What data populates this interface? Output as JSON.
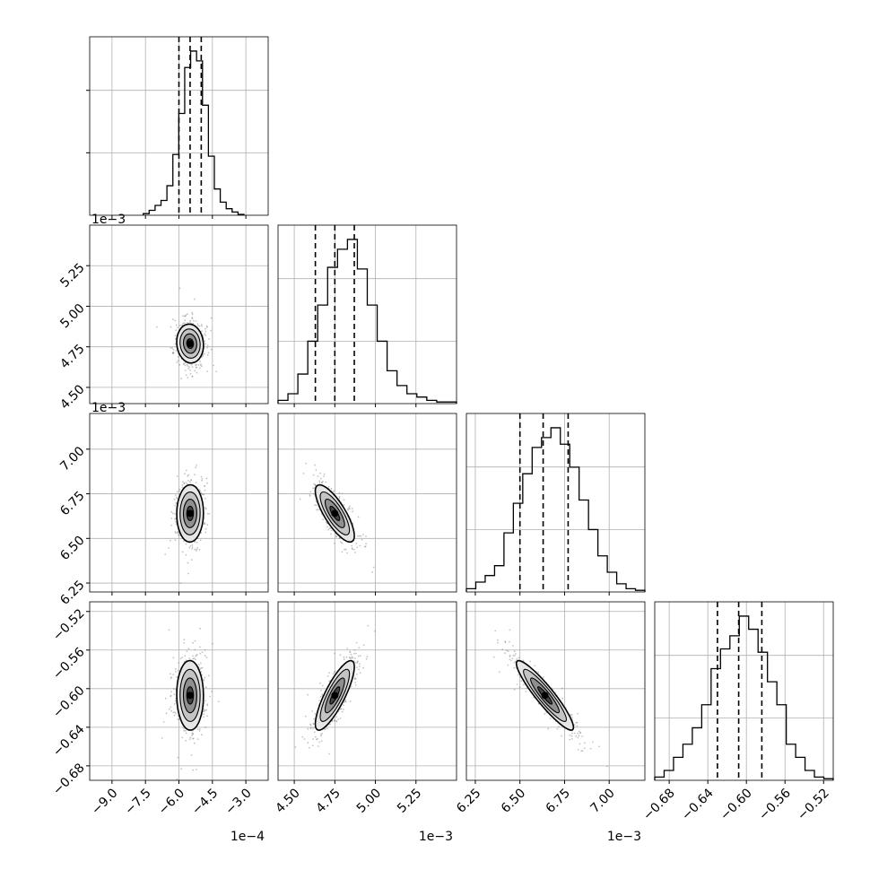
{
  "chart_data": {
    "type": "corner",
    "description_of_variables": 4,
    "axes": [
      {
        "range": [
          -0.001,
          -0.0002
        ],
        "ticks": [
          -0.0009,
          -0.00075,
          -0.0006,
          -0.00045,
          -0.0003
        ],
        "tick_labels": [
          "−9.0",
          "−7.5",
          "−6.0",
          "−4.5",
          "−3.0"
        ],
        "offset_label": "1e−4"
      },
      {
        "range": [
          0.0044,
          0.0055
        ],
        "ticks": [
          0.0045,
          0.00475,
          0.005,
          0.00525
        ],
        "tick_labels": [
          "4.50",
          "4.75",
          "5.00",
          "5.25"
        ],
        "offset_label": "1e−3"
      },
      {
        "range": [
          0.0062,
          0.0072
        ],
        "ticks": [
          0.00625,
          0.0065,
          0.00675,
          0.007
        ],
        "tick_labels": [
          "6.25",
          "6.50",
          "6.75",
          "7.00"
        ],
        "offset_label": "1e−3"
      },
      {
        "range": [
          -0.695,
          -0.51
        ],
        "ticks": [
          -0.68,
          -0.64,
          -0.6,
          -0.56,
          -0.52
        ],
        "tick_labels": [
          "−0.68",
          "−0.64",
          "−0.60",
          "−0.56",
          "−0.52"
        ],
        "offset_label": ""
      }
    ],
    "histograms": [
      {
        "quantiles": [
          -0.0006,
          -0.00055,
          -0.0005
        ],
        "counts": [
          0.01,
          0.03,
          0.06,
          0.09,
          0.18,
          0.37,
          0.62,
          0.9,
          1.0,
          0.94,
          0.67,
          0.36,
          0.16,
          0.08,
          0.04,
          0.02,
          0.005
        ]
      },
      {
        "quantiles": [
          0.00463,
          0.00475,
          0.00487
        ],
        "counts": [
          0.02,
          0.06,
          0.18,
          0.38,
          0.6,
          0.83,
          0.94,
          1.0,
          0.82,
          0.6,
          0.38,
          0.2,
          0.11,
          0.06,
          0.04,
          0.02,
          0.01,
          0.01
        ]
      },
      {
        "quantiles": [
          0.0065,
          0.00663,
          0.00677
        ],
        "counts": [
          0.02,
          0.06,
          0.1,
          0.16,
          0.36,
          0.54,
          0.72,
          0.88,
          0.94,
          1.0,
          0.9,
          0.76,
          0.56,
          0.38,
          0.22,
          0.12,
          0.05,
          0.02,
          0.01
        ]
      },
      {
        "quantiles": [
          -0.63,
          -0.608,
          -0.584
        ],
        "counts": [
          0.02,
          0.06,
          0.14,
          0.22,
          0.32,
          0.46,
          0.68,
          0.8,
          0.88,
          1.0,
          0.92,
          0.78,
          0.6,
          0.46,
          0.22,
          0.14,
          0.06,
          0.02,
          0.01
        ]
      }
    ],
    "pairs": [
      {
        "i": 1,
        "j": 0,
        "center": [
          -0.00055,
          0.00477
        ],
        "sd": [
          3e-05,
          6e-05
        ],
        "corr": -0.08
      },
      {
        "i": 2,
        "j": 0,
        "center": [
          -0.00055,
          0.00664
        ],
        "sd": [
          3e-05,
          8e-05
        ],
        "corr": 0.02
      },
      {
        "i": 2,
        "j": 1,
        "center": [
          0.00475,
          0.00664
        ],
        "sd": [
          6e-05,
          8e-05
        ],
        "corr": -0.78
      },
      {
        "i": 3,
        "j": 0,
        "center": [
          -0.00055,
          -0.607
        ],
        "sd": [
          3e-05,
          0.018
        ],
        "corr": -0.02
      },
      {
        "i": 3,
        "j": 1,
        "center": [
          0.00475,
          -0.607
        ],
        "sd": [
          6e-05,
          0.018
        ],
        "corr": 0.82
      },
      {
        "i": 3,
        "j": 2,
        "center": [
          0.00664,
          -0.607
        ],
        "sd": [
          8e-05,
          0.018
        ],
        "corr": -0.92
      }
    ],
    "contour_levels_sigma": [
      0.5,
      1.0,
      1.5,
      2.0
    ],
    "grid": true,
    "colors": {
      "contour": "#000000",
      "scatter": "#7a7a7a",
      "grid": "#b0b0b0"
    }
  }
}
